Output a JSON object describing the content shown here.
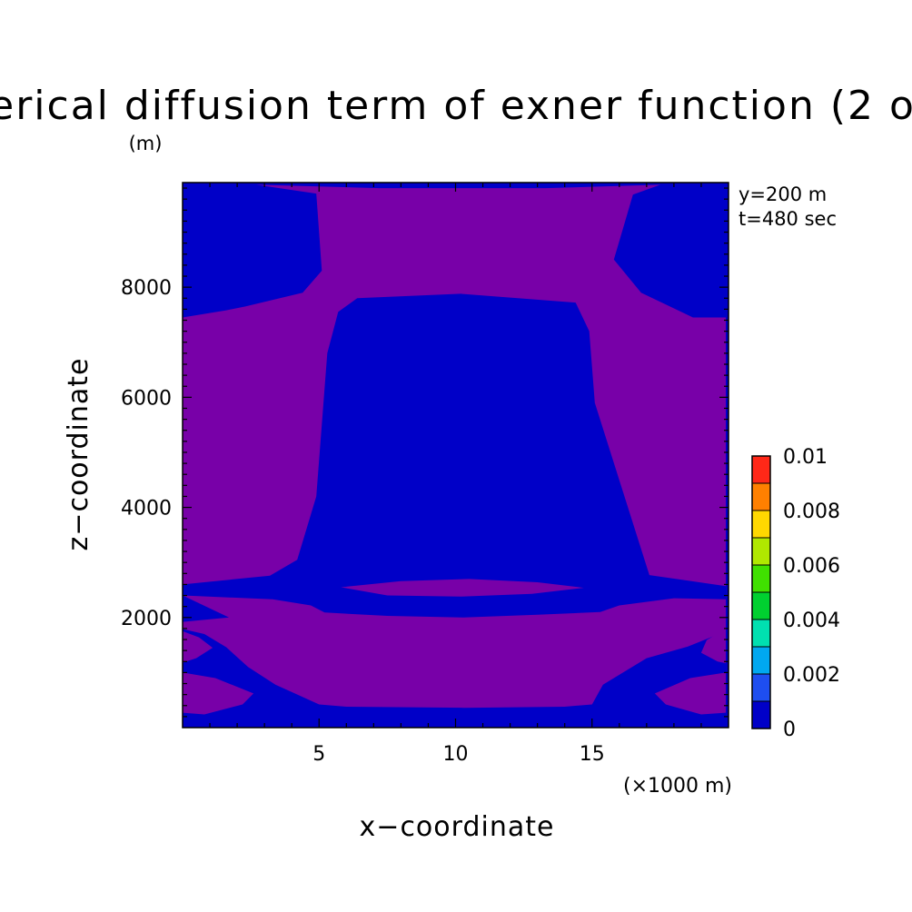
{
  "chart_data": {
    "type": "heatmap",
    "title": "erical diffusion term of exner function (2 o",
    "unit_label": "(m)",
    "xlabel": "x−coordinate",
    "ylabel": "z−coordinate",
    "x_unit": "(×1000 m)",
    "annotations": [
      "y=200 m",
      "t=480 sec"
    ],
    "xlim": [
      0.0,
      20.0
    ],
    "ylim": [
      0,
      9900
    ],
    "x_ticks": [
      5,
      10,
      15
    ],
    "x_tick_labels": [
      "5",
      "10",
      "15"
    ],
    "y_ticks": [
      2000,
      4000,
      6000,
      8000
    ],
    "y_tick_labels": [
      "2000",
      "4000",
      "6000",
      "8000"
    ],
    "grid": false,
    "colorbar": {
      "position": "right",
      "levels": [
        0,
        0.001,
        0.002,
        0.003,
        0.004,
        0.005,
        0.006,
        0.007,
        0.008,
        0.009,
        0.01
      ],
      "tick_values": [
        0,
        0.002,
        0.004,
        0.006,
        0.008,
        0.01
      ],
      "tick_labels": [
        "0",
        "0.002",
        "0.004",
        "0.006",
        "0.008",
        "0.01"
      ],
      "colors": [
        "#0000c8",
        "#1e4ef0",
        "#00a8f0",
        "#00e0b0",
        "#00d030",
        "#40e000",
        "#b0e800",
        "#ffd800",
        "#ff8000",
        "#ff2818"
      ]
    },
    "fill_colors": {
      "low": "#0000c8",
      "high": "#7800a8"
    },
    "regions": [
      {
        "level": "high",
        "name": "upper-central-purple",
        "polygon": [
          [
            2.7,
            9860
          ],
          [
            7.2,
            9800
          ],
          [
            13.3,
            9800
          ],
          [
            17.5,
            9860
          ],
          [
            16.5,
            9680
          ],
          [
            15.8,
            8500
          ],
          [
            16.8,
            7900
          ],
          [
            18.7,
            7450
          ],
          [
            19.9,
            7450
          ],
          [
            19.9,
            2570
          ],
          [
            17.1,
            2770
          ],
          [
            15.1,
            5900
          ],
          [
            14.9,
            7200
          ],
          [
            14.4,
            7720
          ],
          [
            10.2,
            7880
          ],
          [
            6.4,
            7800
          ],
          [
            5.7,
            7550
          ],
          [
            5.3,
            6800
          ],
          [
            4.9,
            4200
          ],
          [
            4.2,
            3050
          ],
          [
            3.2,
            2760
          ],
          [
            0,
            2600
          ],
          [
            0,
            7450
          ],
          [
            1.6,
            7580
          ],
          [
            2.3,
            7650
          ],
          [
            4.4,
            7900
          ],
          [
            5.1,
            8300
          ],
          [
            4.9,
            9700
          ]
        ]
      },
      {
        "level": "high",
        "name": "thin-band-at-2500m",
        "polygon": [
          [
            5.8,
            2550
          ],
          [
            8.0,
            2660
          ],
          [
            10.5,
            2700
          ],
          [
            13.0,
            2640
          ],
          [
            14.7,
            2540
          ],
          [
            12.8,
            2430
          ],
          [
            10.2,
            2380
          ],
          [
            7.5,
            2400
          ]
        ]
      },
      {
        "level": "high",
        "name": "middle-purple-band",
        "polygon": [
          [
            0,
            2400
          ],
          [
            3.3,
            2330
          ],
          [
            4.7,
            2220
          ],
          [
            5.2,
            2090
          ],
          [
            7.5,
            2030
          ],
          [
            10.3,
            2000
          ],
          [
            13.0,
            2050
          ],
          [
            15.3,
            2100
          ],
          [
            16.0,
            2220
          ],
          [
            18.0,
            2350
          ],
          [
            19.9,
            2330
          ],
          [
            19.9,
            1750
          ],
          [
            19.4,
            1650
          ],
          [
            18.5,
            1470
          ],
          [
            17.0,
            1260
          ],
          [
            15.4,
            780
          ],
          [
            15.0,
            420
          ],
          [
            14.0,
            380
          ],
          [
            10.3,
            360
          ],
          [
            6.0,
            380
          ],
          [
            5.0,
            420
          ],
          [
            3.4,
            780
          ],
          [
            2.4,
            1100
          ],
          [
            1.6,
            1460
          ],
          [
            0.8,
            1700
          ],
          [
            0,
            1790
          ],
          [
            0,
            1920
          ],
          [
            1.7,
            2000
          ]
        ]
      },
      {
        "level": "high",
        "name": "left-edge-bulge",
        "polygon": [
          [
            0,
            1750
          ],
          [
            0.6,
            1640
          ],
          [
            1.1,
            1450
          ],
          [
            0.5,
            1260
          ],
          [
            0,
            1180
          ]
        ]
      },
      {
        "level": "high",
        "name": "right-edge-bulge",
        "polygon": [
          [
            19.9,
            1800
          ],
          [
            19.2,
            1590
          ],
          [
            19.0,
            1360
          ],
          [
            19.6,
            1200
          ],
          [
            19.9,
            1170
          ]
        ]
      },
      {
        "level": "high",
        "name": "left-lower-band",
        "polygon": [
          [
            0,
            1000
          ],
          [
            1.2,
            900
          ],
          [
            2.6,
            620
          ],
          [
            2.2,
            420
          ],
          [
            0.8,
            240
          ],
          [
            0,
            270
          ]
        ]
      },
      {
        "level": "high",
        "name": "right-lower-band",
        "polygon": [
          [
            19.9,
            1000
          ],
          [
            18.6,
            900
          ],
          [
            17.3,
            620
          ],
          [
            17.7,
            420
          ],
          [
            19.0,
            240
          ],
          [
            19.9,
            270
          ]
        ]
      }
    ]
  }
}
